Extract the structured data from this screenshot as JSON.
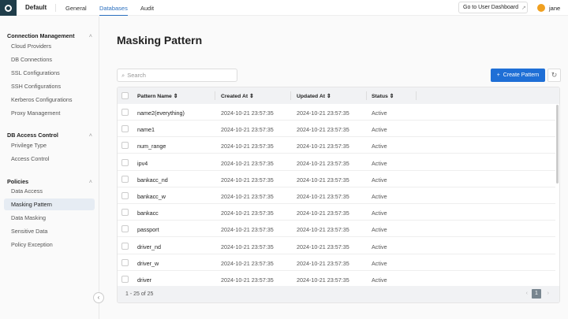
{
  "header": {
    "workspace": "Default",
    "tabs": [
      "General",
      "Databases",
      "Audit"
    ],
    "active_tab": "Databases",
    "dashboard_link": "Go to User Dashboard",
    "user": "jane"
  },
  "sidebar": {
    "groups": [
      {
        "title": "Connection Management",
        "items": [
          "Cloud Providers",
          "DB Connections",
          "SSL Configurations",
          "SSH Configurations",
          "Kerberos Configurations",
          "Proxy Management"
        ]
      },
      {
        "title": "DB Access Control",
        "items": [
          "Privilege Type",
          "Access Control"
        ]
      },
      {
        "title": "Policies",
        "items": [
          "Data Access",
          "Masking Pattern",
          "Data Masking",
          "Sensitive Data",
          "Policy Exception"
        ]
      }
    ],
    "active_item": "Masking Pattern"
  },
  "main": {
    "title": "Masking Pattern",
    "search_placeholder": "Search",
    "create_label": "Create Pattern",
    "columns": [
      "Pattern Name",
      "Created At",
      "Updated At",
      "Status"
    ],
    "rows": [
      [
        "name2(everything)",
        "2024-10-21 23:57:35",
        "2024-10-21 23:57:35",
        "Active"
      ],
      [
        "name1",
        "2024-10-21 23:57:35",
        "2024-10-21 23:57:35",
        "Active"
      ],
      [
        "num_range",
        "2024-10-21 23:57:35",
        "2024-10-21 23:57:35",
        "Active"
      ],
      [
        "ipv4",
        "2024-10-21 23:57:35",
        "2024-10-21 23:57:35",
        "Active"
      ],
      [
        "bankacc_nd",
        "2024-10-21 23:57:35",
        "2024-10-21 23:57:35",
        "Active"
      ],
      [
        "bankacc_w",
        "2024-10-21 23:57:35",
        "2024-10-21 23:57:35",
        "Active"
      ],
      [
        "bankacc",
        "2024-10-21 23:57:35",
        "2024-10-21 23:57:35",
        "Active"
      ],
      [
        "passport",
        "2024-10-21 23:57:35",
        "2024-10-21 23:57:35",
        "Active"
      ],
      [
        "driver_nd",
        "2024-10-21 23:57:35",
        "2024-10-21 23:57:35",
        "Active"
      ],
      [
        "driver_w",
        "2024-10-21 23:57:35",
        "2024-10-21 23:57:35",
        "Active"
      ],
      [
        "driver",
        "2024-10-21 23:57:35",
        "2024-10-21 23:57:35",
        "Active"
      ]
    ],
    "pagination": {
      "summary": "1 - 25 of 25",
      "current_page": "1"
    }
  },
  "colors": {
    "accent": "#1f6fd6",
    "logo_bg": "#1f3d4a"
  }
}
